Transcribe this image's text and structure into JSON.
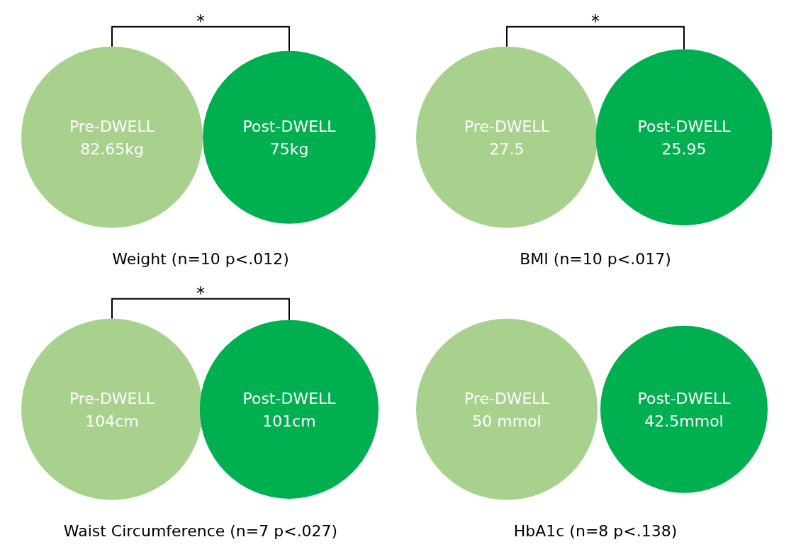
{
  "chart_data": [
    {
      "type": "other",
      "title": "Weight (n=10 p<.012)",
      "categories": [
        "Pre-DWELL",
        "Post-DWELL"
      ],
      "values": [
        82.65,
        75
      ],
      "value_labels": [
        "82.65kg",
        "75kg"
      ],
      "colors": [
        "#a9d18e",
        "#00b050"
      ],
      "annotations": [
        "*"
      ]
    },
    {
      "type": "other",
      "title": "BMI (n=10 p<.017)",
      "categories": [
        "Pre-DWELL",
        "Post-DWELL"
      ],
      "values": [
        27.5,
        25.95
      ],
      "value_labels": [
        "27.5",
        "25.95"
      ],
      "colors": [
        "#a9d18e",
        "#00b050"
      ],
      "annotations": [
        "*"
      ]
    },
    {
      "type": "other",
      "title": "Waist Circumference (n=7 p<.027)",
      "categories": [
        "Pre-DWELL",
        "Post-DWELL"
      ],
      "values": [
        104,
        101
      ],
      "value_labels": [
        "104cm",
        "101cm"
      ],
      "colors": [
        "#a9d18e",
        "#00b050"
      ],
      "annotations": [
        "*"
      ]
    },
    {
      "type": "other",
      "title": "HbA1c (n=8 p<.138)",
      "categories": [
        "Pre-DWELL",
        "Post-DWELL"
      ],
      "values": [
        50,
        42.5
      ],
      "value_labels": [
        "50 mmol",
        "42.5mmol"
      ],
      "colors": [
        "#a9d18e",
        "#00b050"
      ]
    }
  ]
}
